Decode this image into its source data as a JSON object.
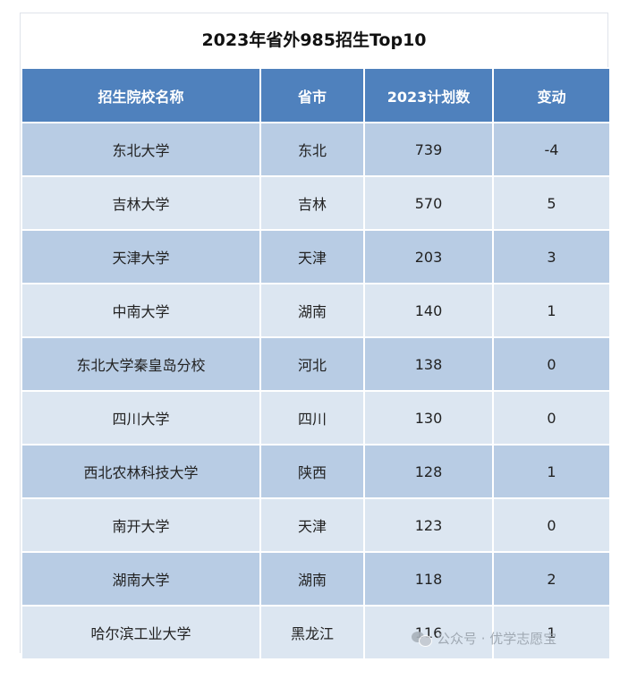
{
  "title": "2023年省外985招生Top10",
  "table": {
    "headers": [
      "招生院校名称",
      "省市",
      "2023计划数",
      "变动"
    ],
    "rows": [
      [
        "东北大学",
        "东北",
        "739",
        "-4"
      ],
      [
        "吉林大学",
        "吉林",
        "570",
        "5"
      ],
      [
        "天津大学",
        "天津",
        "203",
        "3"
      ],
      [
        "中南大学",
        "湖南",
        "140",
        "1"
      ],
      [
        "东北大学秦皇岛分校",
        "河北",
        "138",
        "0"
      ],
      [
        "四川大学",
        "四川",
        "130",
        "0"
      ],
      [
        "西北农林科技大学",
        "陕西",
        "128",
        "1"
      ],
      [
        "南开大学",
        "天津",
        "123",
        "0"
      ],
      [
        "湖南大学",
        "湖南",
        "118",
        "2"
      ],
      [
        "哈尔滨工业大学",
        "黑龙江",
        "116",
        "1"
      ]
    ]
  },
  "watermark": {
    "text": "公众号 · 优学志愿宝",
    "icon": "wechat-icon"
  },
  "colors": {
    "header_bg": "#4f81bd",
    "row_dark": "#b8cce4",
    "row_light": "#dce6f1"
  }
}
